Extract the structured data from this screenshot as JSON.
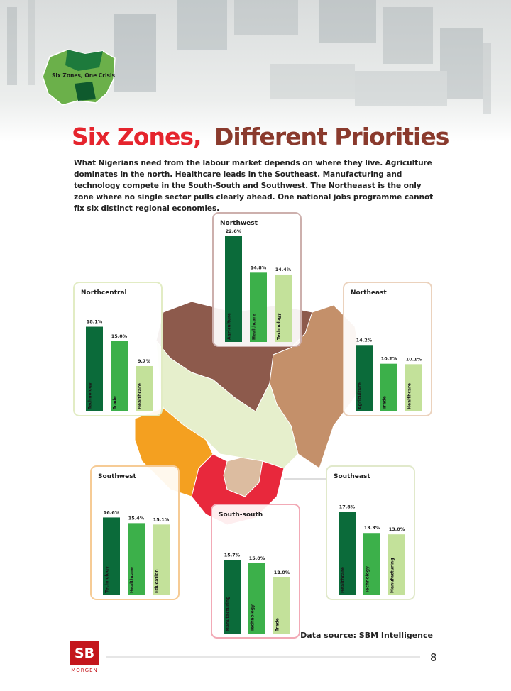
{
  "badge": {
    "label": "Six Zones, One Crisis"
  },
  "title": {
    "part1": "Six Zones,",
    "part2": "Different Priorities"
  },
  "intro": "What Nigerians need from the labour market depends on where they live. Agriculture dominates in the north. Healthcare leads in the Southeast. Manufacturing and technology compete in the South-South and Southwest. The Northeaast is the only zone where no single sector pulls clearly ahead. One national jobs programme cannot fix six distinct regional economies.",
  "chart_data": [
    {
      "type": "bar",
      "title": "Northwest",
      "categories": [
        "Agriculture",
        "Healthcare",
        "Technology"
      ],
      "values": [
        22.6,
        14.8,
        14.4
      ],
      "value_labels": [
        "22.6%",
        "14.8%",
        "14.4%"
      ],
      "colors": [
        "#0b6b3a",
        "#3cb04a",
        "#c3e19a"
      ],
      "frame_color": "#cdb0ad"
    },
    {
      "type": "bar",
      "title": "Northcentral",
      "categories": [
        "Technology",
        "Trade",
        "Healthcare"
      ],
      "values": [
        18.1,
        15.0,
        9.7
      ],
      "value_labels": [
        "18.1%",
        "15.0%",
        "9.7%"
      ],
      "colors": [
        "#0b6b3a",
        "#3cb04a",
        "#c3e19a"
      ],
      "frame_color": "#e2ecc4"
    },
    {
      "type": "bar",
      "title": "Northeast",
      "categories": [
        "Agriculture",
        "Trade",
        "Healthcare"
      ],
      "values": [
        14.2,
        10.2,
        10.1
      ],
      "value_labels": [
        "14.2%",
        "10.2%",
        "10.1%"
      ],
      "colors": [
        "#0b6b3a",
        "#3cb04a",
        "#c3e19a"
      ],
      "frame_color": "#ebd2bd"
    },
    {
      "type": "bar",
      "title": "Southwest",
      "categories": [
        "Technology",
        "Healthcare",
        "Education"
      ],
      "values": [
        16.6,
        15.4,
        15.1
      ],
      "value_labels": [
        "16.6%",
        "15.4%",
        "15.1%"
      ],
      "colors": [
        "#0b6b3a",
        "#3cb04a",
        "#c3e19a"
      ],
      "frame_color": "#f6cb95"
    },
    {
      "type": "bar",
      "title": "South-south",
      "categories": [
        "Manufacturing",
        "Technology",
        "Trade"
      ],
      "values": [
        15.7,
        15.0,
        12.0
      ],
      "value_labels": [
        "15.7%",
        "15.0%",
        "12.0%"
      ],
      "colors": [
        "#0b6b3a",
        "#3cb04a",
        "#c3e19a"
      ],
      "frame_color": "#f2aab6"
    },
    {
      "type": "bar",
      "title": "Southeast",
      "categories": [
        "Healthcare",
        "Technology",
        "Manufacturing"
      ],
      "values": [
        17.8,
        13.3,
        13.0
      ],
      "value_labels": [
        "17.8%",
        "13.3%",
        "13.0%"
      ],
      "colors": [
        "#0b6b3a",
        "#3cb04a",
        "#c3e19a"
      ],
      "frame_color": "#e1e9cb"
    }
  ],
  "source": "Data source: SBM Intelligence",
  "logo": {
    "mark": "SB",
    "name": "MORGEN"
  },
  "page_number": "8"
}
